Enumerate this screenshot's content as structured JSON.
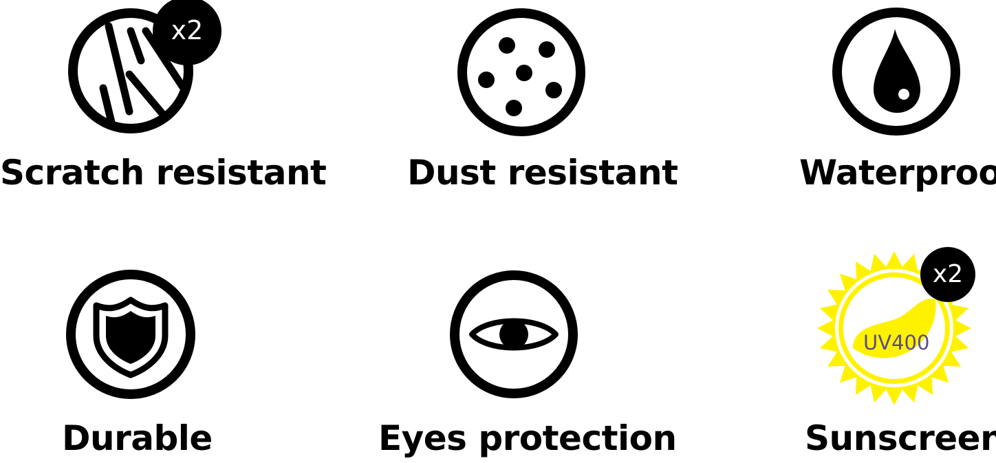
{
  "colors": {
    "ink": "#000000",
    "sun_yellow": "#FFF200",
    "uv_text": "#5B4B8A",
    "background": "#FFFFFF"
  },
  "features": [
    {
      "label": "Scratch resistant",
      "icon": "scratch-icon",
      "badge": "x2"
    },
    {
      "label": "Dust resistant",
      "icon": "dust-icon"
    },
    {
      "label": "Waterproof",
      "icon": "water-drop-icon"
    },
    {
      "label": "Durable",
      "icon": "shield-icon"
    },
    {
      "label": "Eyes protection",
      "icon": "eye-icon"
    },
    {
      "label": "Sunscreen",
      "icon": "sun-icon",
      "badge": "x2",
      "uv": "UV400"
    }
  ]
}
